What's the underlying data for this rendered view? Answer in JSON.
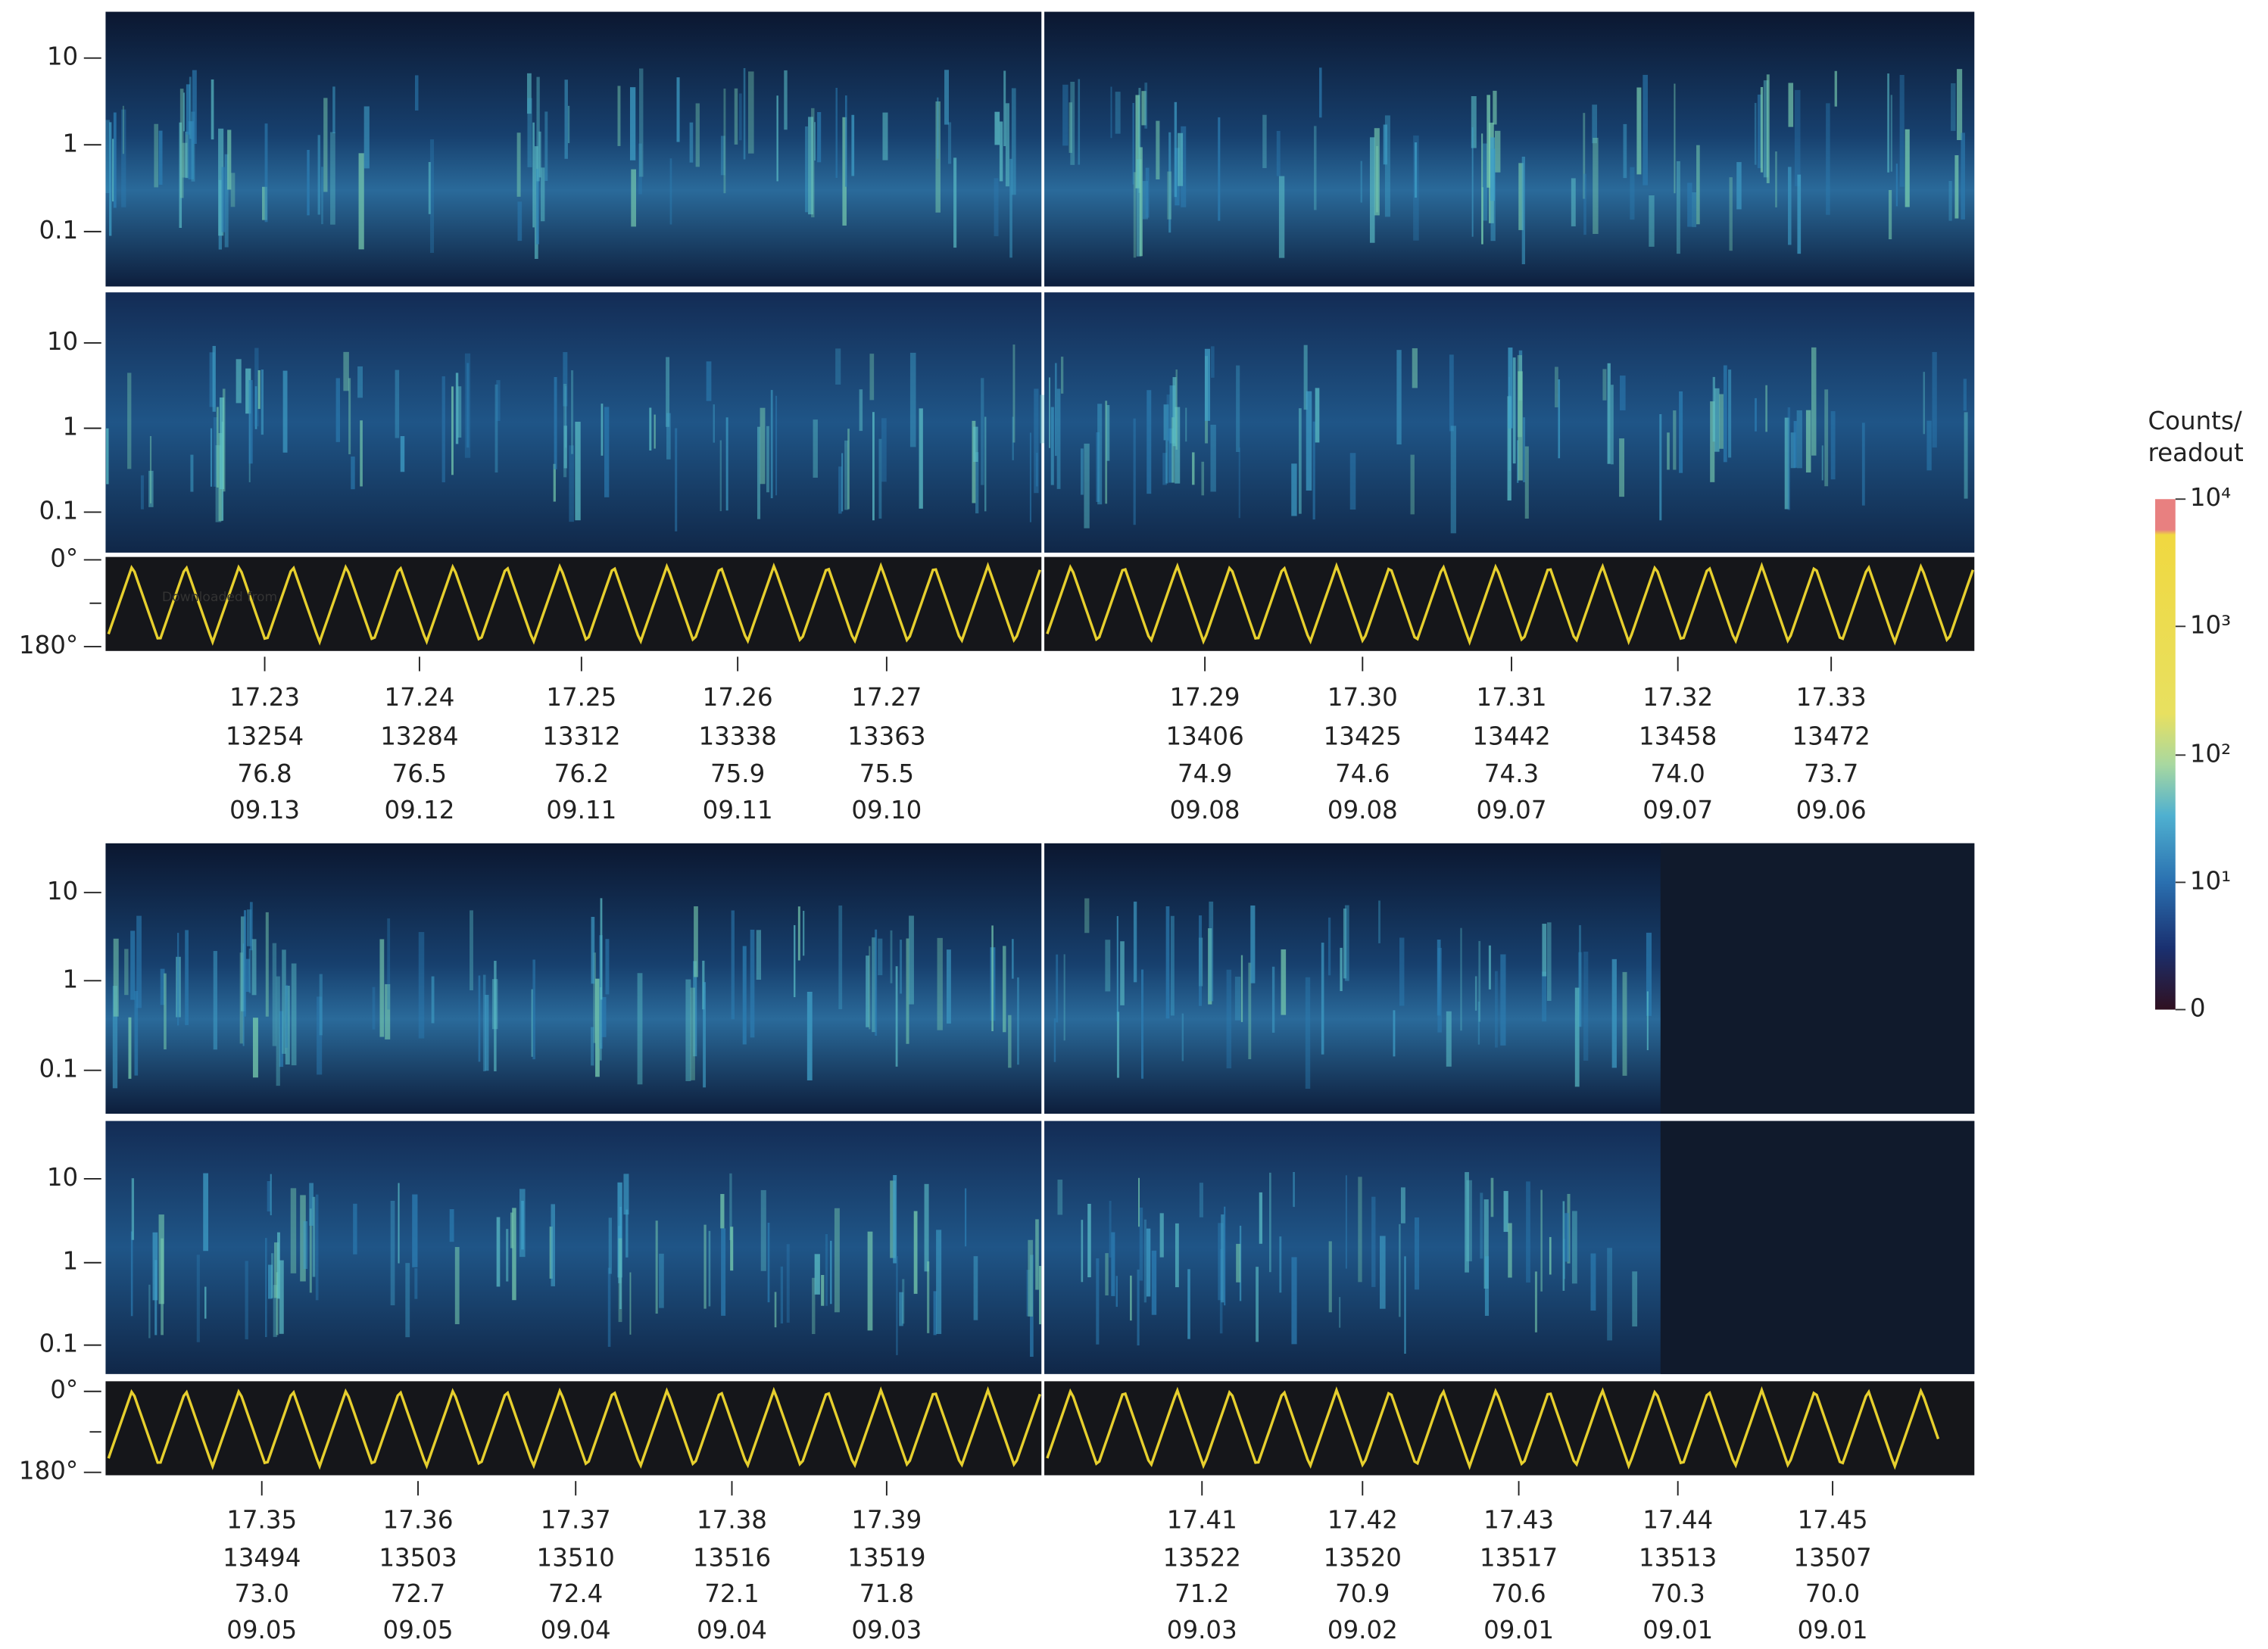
{
  "figure": {
    "watermark": "Downloaded from",
    "energy_ticks": [
      "10",
      "1",
      "0.1"
    ],
    "angle_ticks": [
      "0°",
      "180°"
    ],
    "top_columns": [
      [
        "17.23",
        "13254",
        "76.8",
        "09.13"
      ],
      [
        "17.24",
        "13284",
        "76.5",
        "09.12"
      ],
      [
        "17.25",
        "13312",
        "76.2",
        "09.11"
      ],
      [
        "17.26",
        "13338",
        "75.9",
        "09.11"
      ],
      [
        "17.27",
        "13363",
        "75.5",
        "09.10"
      ],
      [
        "17.29",
        "13406",
        "74.9",
        "09.08"
      ],
      [
        "17.30",
        "13425",
        "74.6",
        "09.08"
      ],
      [
        "17.31",
        "13442",
        "74.3",
        "09.07"
      ],
      [
        "17.32",
        "13458",
        "74.0",
        "09.07"
      ],
      [
        "17.33",
        "13472",
        "73.7",
        "09.06"
      ]
    ],
    "bottom_columns": [
      [
        "17.35",
        "13494",
        "73.0",
        "09.05"
      ],
      [
        "17.36",
        "13503",
        "72.7",
        "09.05"
      ],
      [
        "17.37",
        "13510",
        "72.4",
        "09.04"
      ],
      [
        "17.38",
        "13516",
        "72.1",
        "09.04"
      ],
      [
        "17.39",
        "13519",
        "71.8",
        "09.03"
      ],
      [
        "17.41",
        "13522",
        "71.2",
        "09.03"
      ],
      [
        "17.42",
        "13520",
        "70.9",
        "09.02"
      ],
      [
        "17.43",
        "13517",
        "70.6",
        "09.01"
      ],
      [
        "17.44",
        "13513",
        "70.3",
        "09.01"
      ],
      [
        "17.45",
        "13507",
        "70.0",
        "09.01"
      ]
    ],
    "colorbar": {
      "title": [
        "Counts/",
        "readout"
      ],
      "ticks": [
        "10⁴",
        "10³",
        "10²",
        "10¹",
        "0"
      ]
    }
  }
}
